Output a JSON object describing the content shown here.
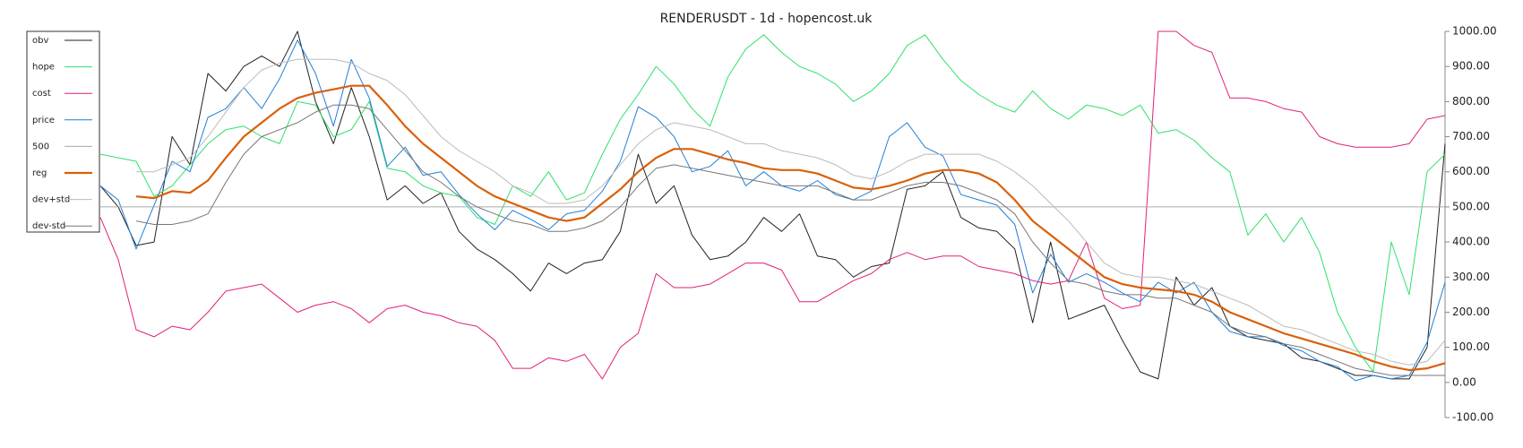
{
  "chart_data": {
    "type": "line",
    "title": "RENDERUSDT - 1d - hopencost.uk",
    "ylim": [
      -100,
      1000
    ],
    "yticks": [
      {
        "value": -100,
        "label": "-100.00"
      },
      {
        "value": 0,
        "label": "0.00"
      },
      {
        "value": 100,
        "label": "100.00"
      },
      {
        "value": 200,
        "label": "200.00"
      },
      {
        "value": 300,
        "label": "300.00"
      },
      {
        "value": 400,
        "label": "400.00"
      },
      {
        "value": 500,
        "label": "500.00"
      },
      {
        "value": 600,
        "label": "600.00"
      },
      {
        "value": 700,
        "label": "700.00"
      },
      {
        "value": 800,
        "label": "800.00"
      },
      {
        "value": 900,
        "label": "900.00"
      },
      {
        "value": 1000,
        "label": "1000.00"
      }
    ],
    "legend": "top-left",
    "series": [
      {
        "name": "obv",
        "color": "#222222",
        "width": 1,
        "values": [
          560,
          500,
          390,
          400,
          700,
          620,
          880,
          830,
          900,
          930,
          900,
          1000,
          800,
          680,
          840,
          700,
          520,
          560,
          510,
          540,
          430,
          380,
          350,
          310,
          260,
          340,
          310,
          340,
          350,
          430,
          650,
          510,
          560,
          420,
          350,
          360,
          400,
          470,
          430,
          480,
          360,
          350,
          300,
          330,
          340,
          550,
          560,
          600,
          470,
          440,
          430,
          380,
          170,
          400,
          180,
          200,
          220,
          120,
          30,
          10,
          300,
          220,
          270,
          160,
          130,
          120,
          110,
          70,
          60,
          40,
          20,
          20,
          10,
          10,
          100,
          680
        ]
      },
      {
        "name": "hope",
        "color": "#2ee06a",
        "width": 1,
        "values": [
          650,
          640,
          630,
          530,
          560,
          620,
          680,
          720,
          730,
          700,
          680,
          800,
          790,
          700,
          720,
          800,
          610,
          600,
          560,
          540,
          530,
          470,
          450,
          560,
          530,
          600,
          520,
          540,
          650,
          750,
          820,
          900,
          850,
          780,
          730,
          870,
          950,
          990,
          940,
          900,
          880,
          850,
          800,
          830,
          880,
          960,
          990,
          920,
          860,
          820,
          790,
          770,
          830,
          780,
          750,
          790,
          780,
          760,
          790,
          710,
          720,
          690,
          640,
          600,
          420,
          480,
          400,
          470,
          370,
          200,
          100,
          30,
          400,
          250,
          600,
          650
        ]
      },
      {
        "name": "cost",
        "color": "#e0207a",
        "width": 1,
        "values": [
          470,
          350,
          150,
          130,
          160,
          150,
          200,
          260,
          270,
          280,
          240,
          200,
          220,
          230,
          210,
          170,
          210,
          220,
          200,
          190,
          170,
          160,
          120,
          40,
          40,
          70,
          60,
          80,
          10,
          100,
          140,
          310,
          270,
          270,
          280,
          310,
          340,
          340,
          320,
          230,
          230,
          260,
          290,
          310,
          350,
          370,
          350,
          360,
          360,
          330,
          320,
          310,
          290,
          280,
          290,
          400,
          240,
          210,
          220,
          1000,
          1000,
          960,
          940,
          810,
          810,
          800,
          780,
          770,
          700,
          680,
          670,
          670,
          670,
          680,
          750,
          760
        ]
      },
      {
        "name": "price",
        "color": "#1f7fd8",
        "width": 1,
        "values": [
          560,
          520,
          380,
          505,
          630,
          600,
          755,
          780,
          840,
          780,
          865,
          975,
          880,
          730,
          920,
          810,
          615,
          670,
          590,
          600,
          535,
          480,
          435,
          490,
          465,
          435,
          480,
          490,
          545,
          630,
          785,
          755,
          700,
          600,
          615,
          660,
          560,
          600,
          560,
          545,
          575,
          535,
          520,
          545,
          700,
          740,
          670,
          645,
          535,
          520,
          505,
          450,
          255,
          365,
          285,
          310,
          285,
          255,
          230,
          285,
          255,
          285,
          200,
          145,
          130,
          130,
          105,
          90,
          60,
          45,
          5,
          20,
          10,
          20,
          115,
          285
        ]
      },
      {
        "name": "500",
        "color": "#aaaaaa",
        "width": 1,
        "values": [
          500,
          500,
          500,
          500,
          500,
          500,
          500,
          500,
          500,
          500,
          500,
          500,
          500,
          500,
          500,
          500,
          500,
          500,
          500,
          500,
          500,
          500,
          500,
          500,
          500,
          500,
          500,
          500,
          500,
          500,
          500,
          500,
          500,
          500,
          500,
          500,
          500,
          500,
          500,
          500,
          500,
          500,
          500,
          500,
          500,
          500,
          500,
          500,
          500,
          500,
          500,
          500,
          500,
          500,
          500,
          500,
          500,
          500,
          500,
          500,
          500,
          500,
          500,
          500,
          500,
          500,
          500,
          500,
          500,
          500,
          500,
          500,
          500,
          500,
          500,
          500
        ]
      },
      {
        "name": "reg",
        "color": "#d9600a",
        "width": 2.2,
        "values": [
          null,
          null,
          530,
          525,
          545,
          540,
          575,
          640,
          700,
          740,
          780,
          810,
          825,
          835,
          845,
          845,
          790,
          730,
          680,
          640,
          600,
          560,
          530,
          510,
          490,
          470,
          460,
          470,
          510,
          550,
          600,
          640,
          665,
          665,
          650,
          635,
          625,
          610,
          605,
          605,
          595,
          575,
          555,
          550,
          560,
          575,
          595,
          605,
          605,
          595,
          570,
          520,
          460,
          420,
          380,
          340,
          300,
          280,
          270,
          265,
          260,
          250,
          230,
          200,
          180,
          160,
          140,
          125,
          110,
          95,
          80,
          60,
          45,
          35,
          40,
          55
        ]
      },
      {
        "name": "dev+std",
        "color": "#bbbbbb",
        "width": 1,
        "values": [
          null,
          null,
          600,
          600,
          620,
          640,
          700,
          770,
          840,
          890,
          910,
          920,
          920,
          920,
          910,
          880,
          860,
          820,
          760,
          700,
          660,
          630,
          600,
          560,
          540,
          510,
          510,
          520,
          560,
          620,
          680,
          720,
          740,
          730,
          720,
          700,
          680,
          680,
          660,
          650,
          640,
          620,
          590,
          580,
          600,
          630,
          650,
          650,
          650,
          650,
          630,
          600,
          560,
          510,
          460,
          400,
          340,
          310,
          300,
          300,
          290,
          280,
          260,
          240,
          220,
          190,
          160,
          150,
          130,
          110,
          90,
          80,
          60,
          50,
          60,
          120
        ]
      },
      {
        "name": "dev-std",
        "color": "#777777",
        "width": 1,
        "values": [
          null,
          null,
          460,
          450,
          450,
          460,
          480,
          570,
          650,
          700,
          720,
          740,
          770,
          790,
          790,
          780,
          720,
          660,
          600,
          570,
          530,
          500,
          480,
          460,
          450,
          430,
          430,
          440,
          460,
          500,
          560,
          610,
          620,
          610,
          600,
          590,
          580,
          570,
          560,
          560,
          560,
          540,
          520,
          520,
          540,
          560,
          570,
          570,
          560,
          540,
          520,
          480,
          400,
          340,
          290,
          280,
          260,
          250,
          250,
          240,
          240,
          220,
          200,
          160,
          140,
          130,
          110,
          100,
          80,
          60,
          40,
          30,
          20,
          20,
          20,
          20
        ]
      }
    ]
  }
}
